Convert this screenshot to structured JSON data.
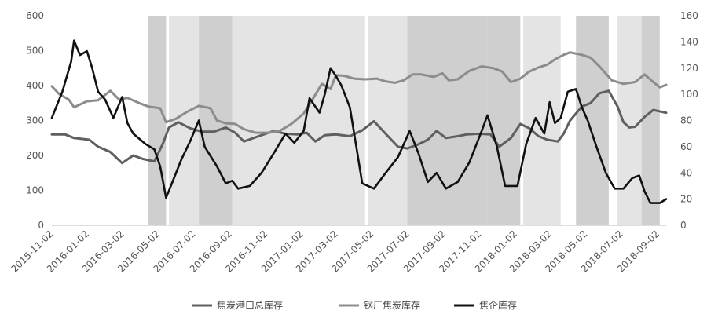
{
  "chart_data": {
    "type": "line",
    "title": "",
    "xlabel": "",
    "ylabel_left": "",
    "ylabel_right": "",
    "grid": false,
    "legend_position": "bottom",
    "ylim_left": [
      0,
      600
    ],
    "ylim_right": [
      0,
      160
    ],
    "y_ticks_left": [
      "0",
      "100",
      "200",
      "300",
      "400",
      "500",
      "600"
    ],
    "y_ticks_right": [
      "0",
      "20",
      "40",
      "60",
      "80",
      "100",
      "120",
      "140",
      "160"
    ],
    "x_range": [
      "2015-11-02",
      "2018-09-16"
    ],
    "x_tick_labels": [
      "2015-11-02",
      "2016-01-02",
      "2016-03-02",
      "2016-05-02",
      "2016-07-02",
      "2016-09-02",
      "2016-11-02",
      "2017-01-02",
      "2017-03-02",
      "2017-05-02",
      "2017-07-02",
      "2017-09-02",
      "2017-11-02",
      "2018-01-02",
      "2018-03-02",
      "2018-05-02",
      "2018-07-02",
      "2018-09-02"
    ],
    "shaded_periods": [
      {
        "start": "2016-04-15",
        "end": "2016-05-15",
        "shade": "dark"
      },
      {
        "start": "2016-05-20",
        "end": "2016-07-10",
        "shade": "light"
      },
      {
        "start": "2016-07-10",
        "end": "2016-09-05",
        "shade": "dark"
      },
      {
        "start": "2016-09-05",
        "end": "2017-04-20",
        "shade": "light"
      },
      {
        "start": "2017-04-25",
        "end": "2017-07-01",
        "shade": "light"
      },
      {
        "start": "2017-07-01",
        "end": "2017-11-15",
        "shade": "dark"
      },
      {
        "start": "2017-11-15",
        "end": "2018-01-10",
        "shade": "dark"
      },
      {
        "start": "2018-01-15",
        "end": "2018-03-20",
        "shade": "light"
      },
      {
        "start": "2018-04-15",
        "end": "2018-06-10",
        "shade": "dark"
      },
      {
        "start": "2018-06-25",
        "end": "2018-08-05",
        "shade": "light"
      },
      {
        "start": "2018-08-05",
        "end": "2018-09-05",
        "shade": "dark"
      }
    ],
    "series": [
      {
        "name": "焦炭港口总库存",
        "axis": "left",
        "color": "#5f5f5f",
        "points": [
          [
            "2015-11-02",
            260
          ],
          [
            "2015-11-25",
            260
          ],
          [
            "2015-12-10",
            250
          ],
          [
            "2016-01-05",
            245
          ],
          [
            "2016-01-20",
            225
          ],
          [
            "2016-02-10",
            210
          ],
          [
            "2016-03-01",
            178
          ],
          [
            "2016-03-20",
            200
          ],
          [
            "2016-04-05",
            190
          ],
          [
            "2016-04-25",
            183
          ],
          [
            "2016-05-10",
            235
          ],
          [
            "2016-05-20",
            280
          ],
          [
            "2016-06-05",
            295
          ],
          [
            "2016-06-25",
            278
          ],
          [
            "2016-07-15",
            268
          ],
          [
            "2016-08-05",
            268
          ],
          [
            "2016-08-25",
            280
          ],
          [
            "2016-09-10",
            265
          ],
          [
            "2016-09-25",
            240
          ],
          [
            "2016-10-20",
            255
          ],
          [
            "2016-11-15",
            270
          ],
          [
            "2016-12-05",
            262
          ],
          [
            "2016-12-25",
            260
          ],
          [
            "2017-01-10",
            265
          ],
          [
            "2017-01-25",
            240
          ],
          [
            "2017-02-10",
            258
          ],
          [
            "2017-03-01",
            260
          ],
          [
            "2017-03-25",
            255
          ],
          [
            "2017-04-15",
            272
          ],
          [
            "2017-05-05",
            298
          ],
          [
            "2017-05-25",
            262
          ],
          [
            "2017-06-15",
            225
          ],
          [
            "2017-07-01",
            220
          ],
          [
            "2017-07-20",
            232
          ],
          [
            "2017-08-05",
            245
          ],
          [
            "2017-08-20",
            270
          ],
          [
            "2017-09-05",
            250
          ],
          [
            "2017-09-25",
            255
          ],
          [
            "2017-10-10",
            260
          ],
          [
            "2017-11-01",
            262
          ],
          [
            "2017-11-20",
            260
          ],
          [
            "2017-12-05",
            225
          ],
          [
            "2017-12-25",
            250
          ],
          [
            "2018-01-10",
            290
          ],
          [
            "2018-01-25",
            278
          ],
          [
            "2018-02-10",
            255
          ],
          [
            "2018-02-25",
            245
          ],
          [
            "2018-03-15",
            240
          ],
          [
            "2018-03-25",
            262
          ],
          [
            "2018-04-05",
            300
          ],
          [
            "2018-04-25",
            340
          ],
          [
            "2018-05-10",
            350
          ],
          [
            "2018-05-25",
            378
          ],
          [
            "2018-06-10",
            385
          ],
          [
            "2018-06-25",
            340
          ],
          [
            "2018-07-05",
            295
          ],
          [
            "2018-07-15",
            280
          ],
          [
            "2018-07-25",
            282
          ],
          [
            "2018-08-10",
            310
          ],
          [
            "2018-08-25",
            330
          ],
          [
            "2018-09-16",
            322
          ]
        ]
      },
      {
        "name": "钢厂焦炭库存",
        "axis": "left",
        "color": "#8c8c8c",
        "points": [
          [
            "2015-11-02",
            398
          ],
          [
            "2015-11-15",
            375
          ],
          [
            "2015-12-01",
            360
          ],
          [
            "2015-12-10",
            338
          ],
          [
            "2016-01-01",
            355
          ],
          [
            "2016-01-20",
            358
          ],
          [
            "2016-02-10",
            385
          ],
          [
            "2016-02-25",
            360
          ],
          [
            "2016-03-10",
            365
          ],
          [
            "2016-03-30",
            350
          ],
          [
            "2016-04-15",
            340
          ],
          [
            "2016-05-05",
            335
          ],
          [
            "2016-05-15",
            295
          ],
          [
            "2016-06-01",
            305
          ],
          [
            "2016-06-20",
            325
          ],
          [
            "2016-07-10",
            342
          ],
          [
            "2016-07-30",
            335
          ],
          [
            "2016-08-10",
            300
          ],
          [
            "2016-08-25",
            292
          ],
          [
            "2016-09-10",
            290
          ],
          [
            "2016-09-25",
            275
          ],
          [
            "2016-10-15",
            265
          ],
          [
            "2016-11-05",
            265
          ],
          [
            "2016-11-25",
            270
          ],
          [
            "2016-12-15",
            290
          ],
          [
            "2017-01-05",
            320
          ],
          [
            "2017-01-20",
            360
          ],
          [
            "2017-02-05",
            405
          ],
          [
            "2017-02-20",
            390
          ],
          [
            "2017-03-01",
            430
          ],
          [
            "2017-03-15",
            428
          ],
          [
            "2017-04-01",
            420
          ],
          [
            "2017-04-20",
            418
          ],
          [
            "2017-05-10",
            420
          ],
          [
            "2017-05-25",
            412
          ],
          [
            "2017-06-10",
            408
          ],
          [
            "2017-06-25",
            415
          ],
          [
            "2017-07-10",
            432
          ],
          [
            "2017-07-25",
            432
          ],
          [
            "2017-08-15",
            425
          ],
          [
            "2017-08-30",
            435
          ],
          [
            "2017-09-10",
            415
          ],
          [
            "2017-09-25",
            418
          ],
          [
            "2017-10-15",
            442
          ],
          [
            "2017-11-05",
            455
          ],
          [
            "2017-11-25",
            450
          ],
          [
            "2017-12-10",
            440
          ],
          [
            "2017-12-25",
            410
          ],
          [
            "2018-01-10",
            420
          ],
          [
            "2018-01-25",
            440
          ],
          [
            "2018-02-10",
            452
          ],
          [
            "2018-02-25",
            460
          ],
          [
            "2018-03-10",
            475
          ],
          [
            "2018-03-25",
            488
          ],
          [
            "2018-04-05",
            495
          ],
          [
            "2018-04-25",
            488
          ],
          [
            "2018-05-10",
            480
          ],
          [
            "2018-05-25",
            455
          ],
          [
            "2018-06-15",
            415
          ],
          [
            "2018-07-05",
            405
          ],
          [
            "2018-07-25",
            410
          ],
          [
            "2018-08-10",
            432
          ],
          [
            "2018-08-25",
            410
          ],
          [
            "2018-09-05",
            395
          ],
          [
            "2018-09-16",
            402
          ]
        ]
      },
      {
        "name": "焦企库存",
        "axis": "right",
        "color": "#111111",
        "points": [
          [
            "2015-11-02",
            82
          ],
          [
            "2015-11-20",
            102
          ],
          [
            "2015-12-05",
            125
          ],
          [
            "2015-12-10",
            141
          ],
          [
            "2015-12-20",
            130
          ],
          [
            "2016-01-01",
            133
          ],
          [
            "2016-01-10",
            120
          ],
          [
            "2016-01-20",
            102
          ],
          [
            "2016-02-01",
            96
          ],
          [
            "2016-02-15",
            82
          ],
          [
            "2016-03-01",
            98
          ],
          [
            "2016-03-10",
            78
          ],
          [
            "2016-03-20",
            70
          ],
          [
            "2016-04-10",
            62
          ],
          [
            "2016-04-25",
            58
          ],
          [
            "2016-05-05",
            45
          ],
          [
            "2016-05-15",
            21
          ],
          [
            "2016-05-25",
            32
          ],
          [
            "2016-06-10",
            50
          ],
          [
            "2016-06-25",
            64
          ],
          [
            "2016-07-10",
            80
          ],
          [
            "2016-07-20",
            60
          ],
          [
            "2016-08-10",
            45
          ],
          [
            "2016-08-25",
            32
          ],
          [
            "2016-09-05",
            34
          ],
          [
            "2016-09-15",
            28
          ],
          [
            "2016-10-05",
            30
          ],
          [
            "2016-10-25",
            40
          ],
          [
            "2016-11-15",
            55
          ],
          [
            "2016-12-05",
            70
          ],
          [
            "2016-12-20",
            63
          ],
          [
            "2017-01-05",
            72
          ],
          [
            "2017-01-15",
            97
          ],
          [
            "2017-02-01",
            86
          ],
          [
            "2017-02-10",
            100
          ],
          [
            "2017-02-20",
            120
          ],
          [
            "2017-03-01",
            114
          ],
          [
            "2017-03-10",
            107
          ],
          [
            "2017-03-25",
            90
          ],
          [
            "2017-04-05",
            60
          ],
          [
            "2017-04-15",
            32
          ],
          [
            "2017-05-05",
            28
          ],
          [
            "2017-05-25",
            40
          ],
          [
            "2017-06-15",
            52
          ],
          [
            "2017-07-05",
            72
          ],
          [
            "2017-07-20",
            55
          ],
          [
            "2017-08-05",
            33
          ],
          [
            "2017-08-20",
            40
          ],
          [
            "2017-09-05",
            28
          ],
          [
            "2017-09-25",
            33
          ],
          [
            "2017-10-15",
            48
          ],
          [
            "2017-11-05",
            72
          ],
          [
            "2017-11-15",
            84
          ],
          [
            "2017-12-01",
            60
          ],
          [
            "2017-12-15",
            30
          ],
          [
            "2018-01-05",
            30
          ],
          [
            "2018-01-20",
            62
          ],
          [
            "2018-02-05",
            82
          ],
          [
            "2018-02-20",
            70
          ],
          [
            "2018-03-01",
            94
          ],
          [
            "2018-03-10",
            78
          ],
          [
            "2018-03-20",
            82
          ],
          [
            "2018-04-01",
            102
          ],
          [
            "2018-04-15",
            104
          ],
          [
            "2018-04-25",
            90
          ],
          [
            "2018-05-05",
            80
          ],
          [
            "2018-05-20",
            60
          ],
          [
            "2018-06-05",
            40
          ],
          [
            "2018-06-20",
            28
          ],
          [
            "2018-07-05",
            28
          ],
          [
            "2018-07-20",
            36
          ],
          [
            "2018-08-01",
            38
          ],
          [
            "2018-08-10",
            26
          ],
          [
            "2018-08-20",
            17
          ],
          [
            "2018-09-05",
            17
          ],
          [
            "2018-09-16",
            20
          ]
        ]
      }
    ]
  }
}
